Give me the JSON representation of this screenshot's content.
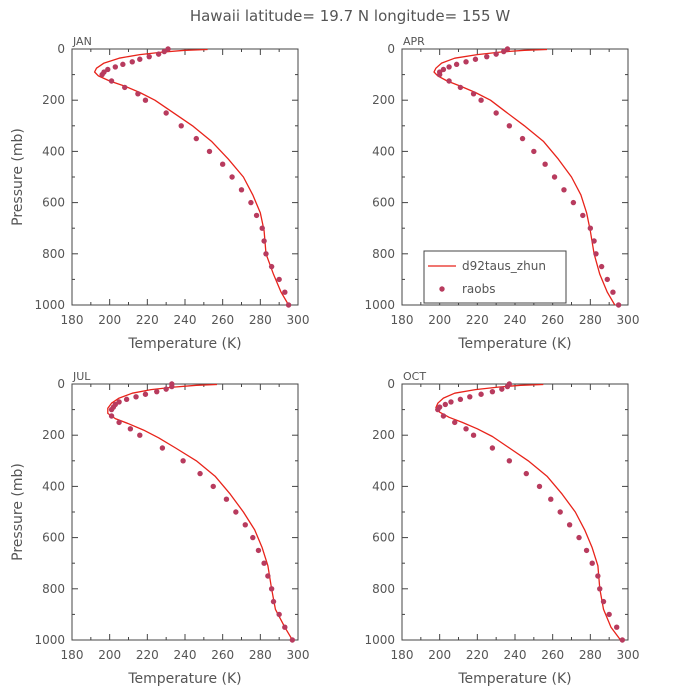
{
  "figure": {
    "title": "Hawaii  latitude= 19.7 N longitude= 155 W"
  },
  "chart_data": [
    {
      "type": "line",
      "panel_label": "JAN",
      "xlabel": "Temperature (K)",
      "ylabel": "Pressure (mb)",
      "xlim": [
        180,
        300
      ],
      "ylim": [
        1000,
        0
      ],
      "x_ticks": [
        "180",
        "200",
        "220",
        "240",
        "260",
        "280",
        "300"
      ],
      "y_ticks": [
        "0",
        "200",
        "400",
        "600",
        "800",
        "1000"
      ],
      "legend": null,
      "series": [
        {
          "name": "d92taus_zhun",
          "kind": "line",
          "color": "#e8231a",
          "x": [
            252,
            240,
            228,
            216,
            205,
            197,
            193,
            192,
            194,
            200,
            208,
            216,
            224,
            233,
            244,
            254,
            263,
            271,
            276,
            280,
            282,
            283,
            287,
            291,
            295
          ],
          "y": [
            2,
            5,
            12,
            22,
            36,
            55,
            75,
            90,
            105,
            125,
            145,
            170,
            200,
            245,
            300,
            360,
            430,
            500,
            570,
            640,
            710,
            800,
            880,
            950,
            1000
          ]
        },
        {
          "name": "raobs",
          "kind": "markers",
          "color": "#b83b5e",
          "x": [
            231,
            229,
            226,
            221,
            216,
            212,
            207,
            203,
            199,
            197,
            196,
            201,
            208,
            215,
            219,
            230,
            238,
            246,
            253,
            260,
            265,
            270,
            275,
            278,
            281,
            282,
            283,
            286,
            290,
            293,
            295
          ],
          "y": [
            0,
            10,
            20,
            30,
            40,
            50,
            60,
            70,
            80,
            90,
            100,
            125,
            150,
            175,
            200,
            250,
            300,
            350,
            400,
            450,
            500,
            550,
            600,
            650,
            700,
            750,
            800,
            850,
            900,
            950,
            1000
          ]
        }
      ]
    },
    {
      "type": "line",
      "panel_label": "APR",
      "xlabel": "Temperature (K)",
      "ylabel": "",
      "xlim": [
        180,
        300
      ],
      "ylim": [
        1000,
        0
      ],
      "x_ticks": [
        "180",
        "200",
        "220",
        "240",
        "260",
        "280",
        "300"
      ],
      "y_ticks": [
        "0",
        "200",
        "400",
        "600",
        "800",
        "1000"
      ],
      "legend": {
        "position": "bottom-left",
        "entries": [
          "d92taus_zhun",
          "raobs"
        ]
      },
      "series": [
        {
          "name": "d92taus_zhun",
          "kind": "line",
          "color": "#e8231a",
          "x": [
            257,
            245,
            232,
            220,
            208,
            201,
            198,
            197,
            199,
            204,
            211,
            219,
            227,
            235,
            245,
            255,
            263,
            270,
            275,
            278,
            280,
            282,
            285,
            289,
            293
          ],
          "y": [
            2,
            5,
            12,
            22,
            36,
            55,
            75,
            90,
            105,
            125,
            145,
            170,
            200,
            245,
            300,
            360,
            430,
            500,
            570,
            640,
            710,
            800,
            880,
            950,
            1000
          ]
        },
        {
          "name": "raobs",
          "kind": "markers",
          "color": "#b83b5e",
          "x": [
            236,
            234,
            230,
            225,
            219,
            214,
            209,
            205,
            202,
            200,
            200,
            205,
            211,
            218,
            222,
            230,
            237,
            244,
            250,
            256,
            261,
            266,
            271,
            276,
            280,
            282,
            283,
            286,
            289,
            292,
            295
          ],
          "y": [
            0,
            10,
            20,
            30,
            40,
            50,
            60,
            70,
            80,
            90,
            100,
            125,
            150,
            175,
            200,
            250,
            300,
            350,
            400,
            450,
            500,
            550,
            600,
            650,
            700,
            750,
            800,
            850,
            900,
            950,
            1000
          ]
        }
      ]
    },
    {
      "type": "line",
      "panel_label": "JUL",
      "xlabel": "Temperature (K)",
      "ylabel": "Pressure (mb)",
      "xlim": [
        180,
        300
      ],
      "ylim": [
        1000,
        0
      ],
      "x_ticks": [
        "180",
        "200",
        "220",
        "240",
        "260",
        "280",
        "300"
      ],
      "y_ticks": [
        "0",
        "200",
        "400",
        "600",
        "800",
        "1000"
      ],
      "legend": null,
      "series": [
        {
          "name": "d92taus_zhun",
          "kind": "line",
          "color": "#e8231a",
          "x": [
            257,
            246,
            234,
            222,
            212,
            205,
            201,
            199,
            199,
            203,
            210,
            218,
            226,
            235,
            246,
            256,
            264,
            271,
            277,
            281,
            284,
            286,
            288,
            293,
            297
          ],
          "y": [
            2,
            5,
            12,
            22,
            36,
            55,
            75,
            95,
            115,
            135,
            155,
            180,
            210,
            250,
            300,
            360,
            430,
            500,
            570,
            640,
            710,
            800,
            880,
            950,
            1000
          ]
        },
        {
          "name": "raobs",
          "kind": "markers",
          "color": "#b83b5e",
          "x": [
            233,
            233,
            230,
            225,
            219,
            214,
            209,
            205,
            203,
            202,
            201,
            201,
            205,
            211,
            216,
            228,
            239,
            248,
            255,
            262,
            267,
            272,
            276,
            279,
            282,
            284,
            286,
            287,
            290,
            293,
            297
          ],
          "y": [
            0,
            10,
            20,
            30,
            40,
            50,
            60,
            70,
            80,
            90,
            100,
            125,
            150,
            175,
            200,
            250,
            300,
            350,
            400,
            450,
            500,
            550,
            600,
            650,
            700,
            750,
            800,
            850,
            900,
            950,
            1000
          ]
        }
      ]
    },
    {
      "type": "line",
      "panel_label": "OCT",
      "xlabel": "Temperature (K)",
      "ylabel": "",
      "xlim": [
        180,
        300
      ],
      "ylim": [
        1000,
        0
      ],
      "x_ticks": [
        "180",
        "200",
        "220",
        "240",
        "260",
        "280",
        "300"
      ],
      "y_ticks": [
        "0",
        "200",
        "400",
        "600",
        "800",
        "1000"
      ],
      "legend": null,
      "series": [
        {
          "name": "d92taus_zhun",
          "kind": "line",
          "color": "#e8231a",
          "x": [
            255,
            243,
            231,
            219,
            208,
            202,
            199,
            198,
            200,
            205,
            212,
            220,
            228,
            237,
            247,
            257,
            265,
            272,
            277,
            281,
            284,
            285,
            287,
            291,
            296
          ],
          "y": [
            2,
            5,
            12,
            22,
            36,
            55,
            75,
            92,
            110,
            130,
            150,
            175,
            205,
            250,
            300,
            360,
            430,
            500,
            570,
            640,
            710,
            800,
            880,
            950,
            1000
          ]
        },
        {
          "name": "raobs",
          "kind": "markers",
          "color": "#b83b5e",
          "x": [
            237,
            236,
            233,
            228,
            222,
            216,
            211,
            206,
            203,
            200,
            199,
            202,
            208,
            214,
            218,
            228,
            237,
            246,
            253,
            259,
            264,
            269,
            274,
            278,
            281,
            284,
            285,
            287,
            290,
            294,
            297
          ],
          "y": [
            0,
            10,
            20,
            30,
            40,
            50,
            60,
            70,
            80,
            90,
            100,
            125,
            150,
            175,
            200,
            250,
            300,
            350,
            400,
            450,
            500,
            550,
            600,
            650,
            700,
            750,
            800,
            850,
            900,
            950,
            1000
          ]
        }
      ]
    }
  ]
}
